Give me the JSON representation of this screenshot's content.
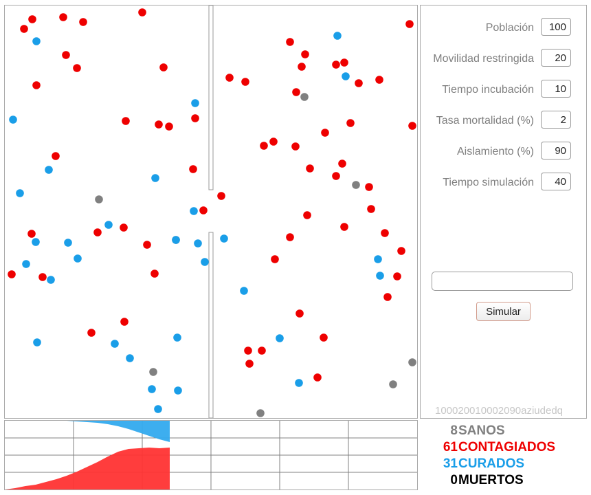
{
  "params": [
    {
      "label": "Población",
      "value": "100"
    },
    {
      "label": "Movilidad restringida",
      "value": "20"
    },
    {
      "label": "Tiempo incubación",
      "value": "10"
    },
    {
      "label": "Tasa mortalidad (%)",
      "value": "2"
    },
    {
      "label": "Aislamiento (%)",
      "value": "90"
    },
    {
      "label": "Tiempo simulación",
      "value": "40"
    }
  ],
  "result_value": "",
  "simulate_label": "Simular",
  "code": "100020010002090aziudedq",
  "legend": [
    {
      "count": "8",
      "label": "SANOS",
      "color": "#808080"
    },
    {
      "count": "61",
      "label": "CONTAGIADOS",
      "color": "#ee0000"
    },
    {
      "count": "31",
      "label": "CURADOS",
      "color": "#1a9ee8"
    },
    {
      "count": "0",
      "label": "MUERTOS",
      "color": "#000000"
    }
  ],
  "colors": {
    "healthy": "#808080",
    "infected": "#ee0000",
    "cured": "#1a9ee8",
    "wall": "#c8c8c8"
  },
  "chart_data": {
    "type": "area",
    "total": 100,
    "steps_drawn": 16,
    "steps_total": 40,
    "series": [
      {
        "name": "CONTAGIADOS",
        "values": [
          2,
          5,
          7,
          11,
          15,
          20,
          26,
          33,
          40,
          48,
          55,
          59,
          60,
          61,
          60,
          61
        ]
      },
      {
        "name": "CURADOS",
        "values": [
          0,
          0,
          0,
          0,
          0,
          0,
          1,
          2,
          3,
          5,
          8,
          12,
          17,
          22,
          27,
          31
        ]
      }
    ]
  }
}
